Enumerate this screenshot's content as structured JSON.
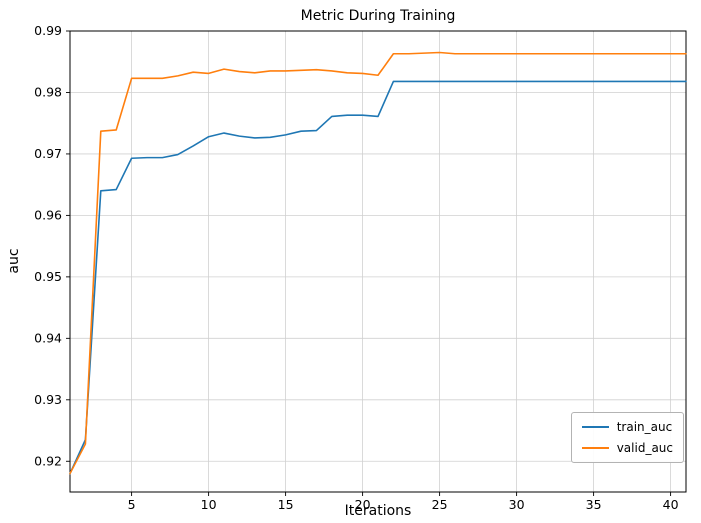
{
  "figure_title": "Metric During Training",
  "colors": {
    "train": "#1f77b4",
    "valid": "#ff7f0e",
    "grid": "#d0d0d0",
    "spine": "#000000",
    "background": "#ffffff"
  },
  "chart_data": {
    "type": "line",
    "title": "Metric During Training",
    "xlabel": "Iterations",
    "ylabel": "auc",
    "grid": true,
    "legend_position": "lower right",
    "xlim": [
      1,
      41
    ],
    "ylim": [
      0.915,
      0.99
    ],
    "xticks": [
      5,
      10,
      15,
      20,
      25,
      30,
      35,
      40
    ],
    "yticks": [
      0.92,
      0.93,
      0.94,
      0.95,
      0.96,
      0.97,
      0.98,
      0.99
    ],
    "x": [
      1,
      2,
      3,
      4,
      5,
      6,
      7,
      8,
      9,
      10,
      11,
      12,
      13,
      14,
      15,
      16,
      17,
      18,
      19,
      20,
      21,
      22,
      23,
      24,
      25,
      26,
      27,
      28,
      29,
      30,
      31,
      32,
      33,
      34,
      35,
      36,
      37,
      38,
      39,
      40,
      41
    ],
    "series": [
      {
        "name": "train_auc",
        "color": "#1f77b4",
        "values": [
          0.918,
          0.9235,
          0.964,
          0.9642,
          0.9693,
          0.9694,
          0.9694,
          0.9699,
          0.9713,
          0.9728,
          0.9734,
          0.9729,
          0.9726,
          0.9727,
          0.9731,
          0.9737,
          0.9738,
          0.9761,
          0.9763,
          0.9763,
          0.9761,
          0.9818,
          0.9818,
          0.9818,
          0.9818,
          0.9818,
          0.9818,
          0.9818,
          0.9818,
          0.9818,
          0.9818,
          0.9818,
          0.9818,
          0.9818,
          0.9818,
          0.9818,
          0.9818,
          0.9818,
          0.9818,
          0.9818,
          0.9818
        ]
      },
      {
        "name": "valid_auc",
        "color": "#ff7f0e",
        "values": [
          0.918,
          0.9228,
          0.9737,
          0.9739,
          0.9823,
          0.9823,
          0.9823,
          0.9827,
          0.9833,
          0.9831,
          0.9838,
          0.9834,
          0.9832,
          0.9835,
          0.9835,
          0.9836,
          0.9837,
          0.9835,
          0.9832,
          0.9831,
          0.9828,
          0.9863,
          0.9863,
          0.9864,
          0.9865,
          0.9863,
          0.9863,
          0.9863,
          0.9863,
          0.9863,
          0.9863,
          0.9863,
          0.9863,
          0.9863,
          0.9863,
          0.9863,
          0.9863,
          0.9863,
          0.9863,
          0.9863,
          0.9863
        ]
      }
    ]
  }
}
